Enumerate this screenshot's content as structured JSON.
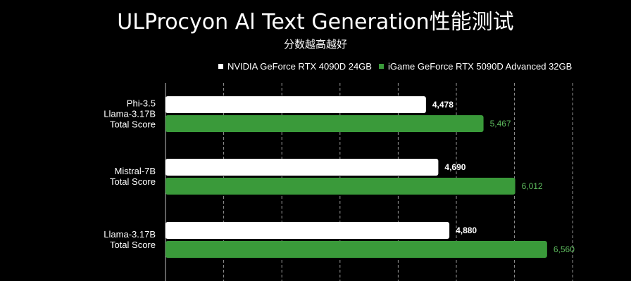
{
  "page": {
    "title": "ULProcyon Al Text Generation性能测试",
    "subtitle": "分数越高越好"
  },
  "colors": {
    "background": "#000000",
    "series_a": "#ffffff",
    "series_b": "#3a9a3a",
    "label_a": "#ffffff",
    "label_b": "#5cb85c",
    "grid": "#bfbfbf"
  },
  "chart_data": {
    "type": "bar",
    "orientation": "horizontal",
    "grid": "vertical dashed",
    "legend_placement": "top",
    "xlim": [
      0,
      7000
    ],
    "categories": [
      "Phi-3.5\nLlama-3.17B\nTotal Score",
      "Mistral-7B\nTotal Score",
      "Llama-3.17B\nTotal Score"
    ],
    "series": [
      {
        "name": "NVIDIA GeForce RTX 4090D 24GB",
        "values": [
          4478,
          4690,
          4880
        ],
        "labels": [
          "4,478",
          "4,690",
          "4,880"
        ]
      },
      {
        "name": "iGame GeForce RTX 5090D Advanced 32GB",
        "values": [
          5467,
          6012,
          6560
        ],
        "labels": [
          "5,467",
          "6,012",
          "6,560"
        ]
      }
    ]
  }
}
